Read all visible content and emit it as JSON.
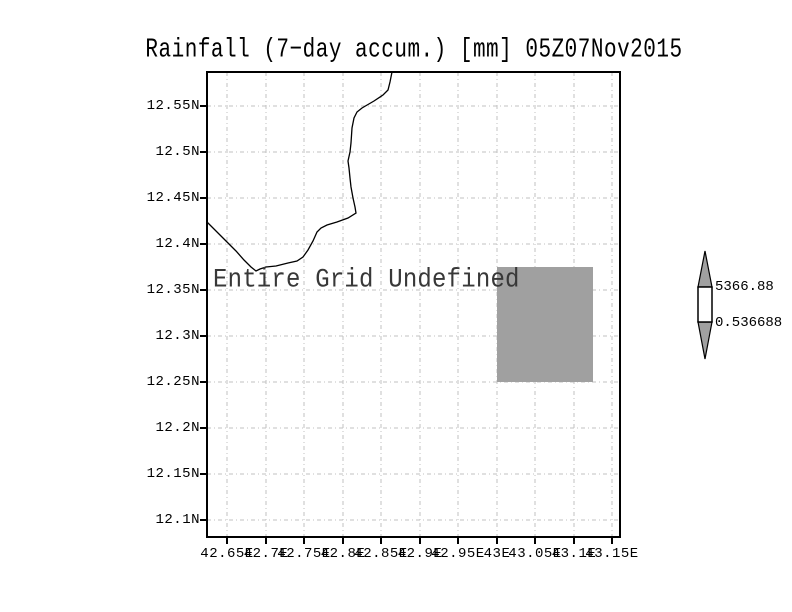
{
  "title": "Rainfall (7−day accum.) [mm] 05Z07Nov2015",
  "map": {
    "message": "Entire Grid Undefined",
    "y_axis_labels": [
      "12.55N",
      "12.5N",
      "12.45N",
      "12.4N",
      "12.35N",
      "12.3N",
      "12.25N",
      "12.2N",
      "12.15N",
      "12.1N"
    ],
    "x_axis_labels": [
      "42.65E",
      "42.7E",
      "42.75E",
      "42.8E",
      "42.85E",
      "42.9E",
      "42.95E",
      "43E",
      "43.05E",
      "43.1E",
      "43.15E"
    ]
  },
  "colorbar": {
    "max_label": "5366.88",
    "min_label": "0.536688",
    "arrow_fill": "#a0a0a0",
    "box_fill": "#ffffff"
  },
  "colors": {
    "shaded_cell": "#a0a0a0",
    "grid": "#c2c2c2",
    "coastline": "#000000",
    "frame": "#000000"
  },
  "chart_data": {
    "type": "heatmap",
    "title": "Rainfall (7−day accum.) [mm] 05Z07Nov2015",
    "variable": "Rainfall (7-day accum.)",
    "units": "mm",
    "valid_time": "05Z07Nov2015",
    "x_tick_labels": [
      "42.65E",
      "42.7E",
      "42.75E",
      "42.8E",
      "42.85E",
      "42.9E",
      "42.95E",
      "43E",
      "43.05E",
      "43.1E",
      "43.15E"
    ],
    "y_tick_labels": [
      "12.55N",
      "12.5N",
      "12.45N",
      "12.4N",
      "12.35N",
      "12.3N",
      "12.25N",
      "12.2N",
      "12.15N",
      "12.1N"
    ],
    "grid": "dash-dot",
    "legend_position": "right",
    "colorbar_range": {
      "min": 0.536688,
      "max": 5366.88
    },
    "data_status": "Entire Grid Undefined",
    "annotations": [
      "Entire Grid Undefined"
    ],
    "shaded_cells": [
      {
        "lon_min": 43.0,
        "lon_max": 43.125,
        "lat_min": 12.25,
        "lat_max": 12.375,
        "color": "#a0a0a0",
        "value": null
      }
    ]
  }
}
